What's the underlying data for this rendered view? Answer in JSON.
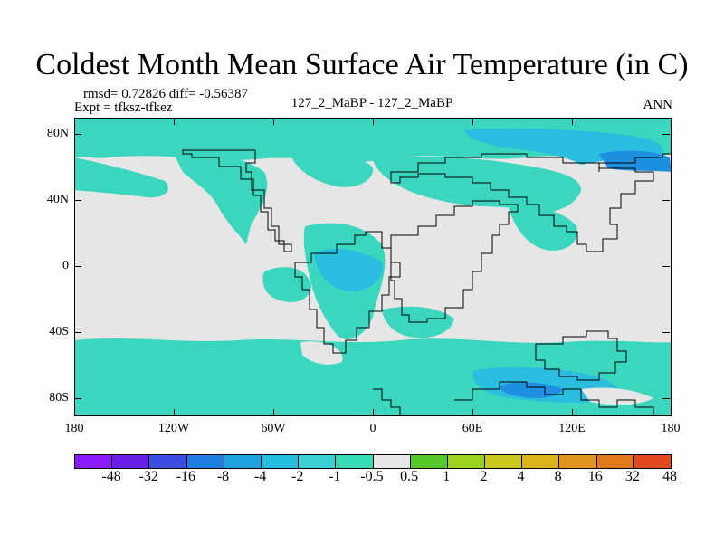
{
  "title": "Coldest Month Mean Surface Air Temperature (in C)",
  "stats": "rmsd= 0.72826 diff= -0.56387",
  "experiment": "Expt = tfksz-tfkez",
  "case": "127_2_MaBP - 127_2_MaBP",
  "season": "ANN",
  "lat_labels": [
    "80N",
    "40N",
    "0",
    "40S",
    "80S"
  ],
  "lon_labels": [
    "180",
    "120W",
    "60W",
    "0",
    "60E",
    "120E",
    "180"
  ],
  "colorbar": {
    "colors": [
      "#8c1cff",
      "#6a1fe6",
      "#3b4ee0",
      "#1f7fe0",
      "#1ea3e0",
      "#27bde0",
      "#3ccfd6",
      "#38dcb4",
      "#e6e6e6",
      "#56c82a",
      "#9ad21f",
      "#c8c81e",
      "#dcb41e",
      "#e0961e",
      "#e0781e",
      "#e04a1e"
    ],
    "labels": [
      "-48",
      "-32",
      "-16",
      "-8",
      "-4",
      "-2",
      "-1",
      "-0.5",
      "0.5",
      "1",
      "2",
      "4",
      "8",
      "16",
      "32",
      "48"
    ]
  },
  "colors": {
    "neutral": "#e6e6e6",
    "cool": "#3ad6be",
    "cooler": "#2abde0",
    "coolest": "#1f8fe0"
  }
}
